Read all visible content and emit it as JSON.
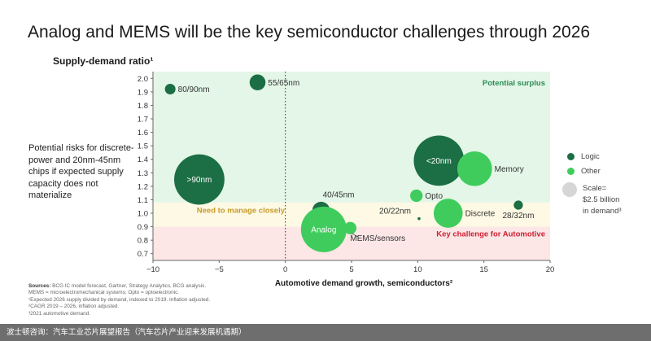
{
  "title": "Analog and MEMS will be the key semiconductor challenges through 2026",
  "note": "Potential risks for discrete-power and 20nm-45nm chips if expected supply capacity does not materialize",
  "legend": {
    "logic_label": "Logic",
    "other_label": "Other",
    "scale_lines": [
      "Scale=",
      "$2.5 billion",
      "in demand³"
    ]
  },
  "sources": {
    "label": "Sources:",
    "lines": [
      "BCG IC model forecast, Gartner, Strategy Analytics, BCG analysis.",
      "MEMS = microelectromechanical systems; Opto = optoelectronic.",
      "¹Expected 2026 supply divided by demand, indexed to 2019. Inflation adjusted.",
      "²CAGR 2019 – 2026, inflation adjusted.",
      "³2021 automotive demand."
    ]
  },
  "footer": "波士顿咨询：汽车工业芯片展望报告（汽车芯片产业迎来发展机遇期）",
  "colors": {
    "logic": "#1c6e45",
    "other": "#3fcc5c",
    "surplus_zone": "#e3f6e7",
    "manage_zone": "#fdf9e4",
    "challenge_zone": "#fce6e6",
    "surplus_text": "#2b8a55",
    "manage_text": "#c89a2a",
    "challenge_text": "#cc2233",
    "scale_bubble": "#d6d6d6"
  },
  "chart_data": {
    "type": "scatter",
    "title": "Analog and MEMS will be the key semiconductor challenges through 2026",
    "xlabel": "Automotive demand growth, semiconductors²",
    "ylabel": "Supply-demand ratio¹",
    "xlim": [
      -10,
      20
    ],
    "ylim": [
      0.65,
      2.05
    ],
    "xticks": [
      -10,
      -5,
      0,
      5,
      10,
      15,
      20
    ],
    "xtick_labels": [
      "−10",
      "−5",
      "0",
      "5",
      "10",
      "15",
      "20"
    ],
    "yticks": [
      0.7,
      0.8,
      0.9,
      1.0,
      1.1,
      1.2,
      1.3,
      1.4,
      1.5,
      1.6,
      1.7,
      1.8,
      1.9,
      2.0
    ],
    "ytick_labels": [
      "0.7",
      "0.8",
      "0.9",
      "1.0",
      "1.1",
      "1.2",
      "1.3",
      "1.4",
      "1.5",
      "1.6",
      "1.7",
      "1.8",
      "1.9",
      "2.0"
    ],
    "grid": false,
    "legend_position": "right",
    "zones": [
      {
        "label": "Potential surplus",
        "y_from": 1.08,
        "y_to": 2.05
      },
      {
        "label": "Need to manage closely",
        "y_from": 0.9,
        "y_to": 1.08
      },
      {
        "label": "Key challenge for Automotive",
        "y_from": 0.65,
        "y_to": 0.9
      }
    ],
    "series": [
      {
        "name": "Logic",
        "points": [
          {
            "label": "80/90nm",
            "x": -8.7,
            "y": 1.92,
            "demand": 0.4
          },
          {
            "label": "55/65nm",
            "x": -2.1,
            "y": 1.97,
            "demand": 0.9
          },
          {
            "label": ">90nm",
            "x": -6.5,
            "y": 1.25,
            "demand": 9.0
          },
          {
            "label": "<20nm",
            "x": 11.6,
            "y": 1.39,
            "demand": 9.0
          },
          {
            "label": "40/45nm",
            "x": 2.7,
            "y": 1.02,
            "demand": 1.1
          },
          {
            "label": "20/22nm",
            "x": 10.1,
            "y": 0.96,
            "demand": 0.02
          },
          {
            "label": "28/32nm",
            "x": 17.6,
            "y": 1.06,
            "demand": 0.3
          }
        ]
      },
      {
        "name": "Other",
        "points": [
          {
            "label": "Memory",
            "x": 14.3,
            "y": 1.33,
            "demand": 4.3
          },
          {
            "label": "Opto",
            "x": 9.9,
            "y": 1.13,
            "demand": 0.55
          },
          {
            "label": "Discrete",
            "x": 12.3,
            "y": 1.0,
            "demand": 3.0
          },
          {
            "label": "Analog",
            "x": 2.9,
            "y": 0.88,
            "demand": 7.4
          },
          {
            "label": "MEMS/sensors",
            "x": 4.9,
            "y": 0.89,
            "demand": 0.55
          }
        ]
      }
    ],
    "scale_bubble_demand": 2.5,
    "reference_line_x": 0
  }
}
